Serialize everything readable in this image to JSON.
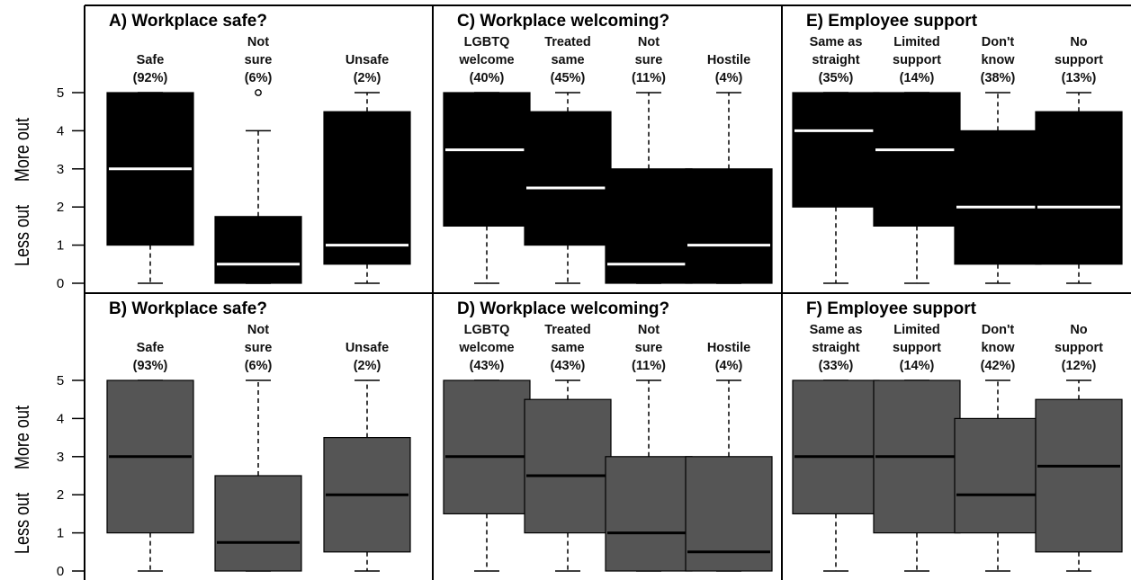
{
  "chart_data": [
    {
      "type": "boxplot",
      "title": "A) Workplace safe?",
      "ylabels": [
        "More out",
        "Less out"
      ],
      "yticks": [
        0,
        1,
        2,
        3,
        4,
        5
      ],
      "ylim": [
        0,
        5
      ],
      "box_color": "#000000",
      "median_color": "#ffffff",
      "boxes": [
        {
          "label": [
            "Safe",
            "(92%)"
          ],
          "min": 0,
          "q1": 1,
          "median": 3,
          "q3": 5,
          "max": 5,
          "outliers": []
        },
        {
          "label": [
            "Not",
            "sure",
            "(6%)"
          ],
          "min": 0,
          "q1": 0,
          "median": 0.5,
          "q3": 1.75,
          "max": 4,
          "outliers": [
            5
          ]
        },
        {
          "label": [
            "Unsafe",
            "(2%)"
          ],
          "min": 0,
          "q1": 0.5,
          "median": 1,
          "q3": 4.5,
          "max": 5,
          "outliers": []
        }
      ]
    },
    {
      "type": "boxplot",
      "title": "C) Workplace welcoming?",
      "yticks": [
        0,
        1,
        2,
        3,
        4,
        5
      ],
      "ylim": [
        0,
        5
      ],
      "box_color": "#000000",
      "median_color": "#ffffff",
      "boxes": [
        {
          "label": [
            "LGBTQ",
            "welcome",
            "(40%)"
          ],
          "min": 0,
          "q1": 1.5,
          "median": 3.5,
          "q3": 5,
          "max": 5,
          "outliers": []
        },
        {
          "label": [
            "Treated",
            "same",
            "(45%)"
          ],
          "min": 0,
          "q1": 1,
          "median": 2.5,
          "q3": 4.5,
          "max": 5,
          "outliers": []
        },
        {
          "label": [
            "Not",
            "sure",
            "(11%)"
          ],
          "min": 0,
          "q1": 0,
          "median": 0.5,
          "q3": 3,
          "max": 5,
          "outliers": []
        },
        {
          "label": [
            "Hostile",
            "(4%)"
          ],
          "min": 0,
          "q1": 0,
          "median": 1,
          "q3": 3,
          "max": 5,
          "outliers": []
        }
      ]
    },
    {
      "type": "boxplot",
      "title": "E) Employee support",
      "yticks": [
        0,
        1,
        2,
        3,
        4,
        5
      ],
      "ylim": [
        0,
        5
      ],
      "box_color": "#000000",
      "median_color": "#ffffff",
      "boxes": [
        {
          "label": [
            "Same as",
            "straight",
            "(35%)"
          ],
          "min": 0,
          "q1": 2,
          "median": 4,
          "q3": 5,
          "max": 5,
          "outliers": []
        },
        {
          "label": [
            "Limited",
            "support",
            "(14%)"
          ],
          "min": 0,
          "q1": 1.5,
          "median": 3.5,
          "q3": 5,
          "max": 5,
          "outliers": []
        },
        {
          "label": [
            "Don't",
            "know",
            "(38%)"
          ],
          "min": 0,
          "q1": 0.5,
          "median": 2,
          "q3": 4,
          "max": 5,
          "outliers": []
        },
        {
          "label": [
            "No",
            "support",
            "(13%)"
          ],
          "min": 0,
          "q1": 0.5,
          "median": 2,
          "q3": 4.5,
          "max": 5,
          "outliers": []
        }
      ]
    },
    {
      "type": "boxplot",
      "title": "B) Workplace safe?",
      "ylabels": [
        "More out",
        "Less out"
      ],
      "yticks": [
        0,
        1,
        2,
        3,
        4,
        5
      ],
      "ylim": [
        0,
        5
      ],
      "box_color": "#555555",
      "median_color": "#000000",
      "boxes": [
        {
          "label": [
            "Safe",
            "(93%)"
          ],
          "min": 0,
          "q1": 1,
          "median": 3,
          "q3": 5,
          "max": 5,
          "outliers": []
        },
        {
          "label": [
            "Not",
            "sure",
            "(6%)"
          ],
          "min": 0,
          "q1": 0,
          "median": 0.75,
          "q3": 2.5,
          "max": 5,
          "outliers": []
        },
        {
          "label": [
            "Unsafe",
            "(2%)"
          ],
          "min": 0,
          "q1": 0.5,
          "median": 2,
          "q3": 3.5,
          "max": 5,
          "outliers": []
        }
      ]
    },
    {
      "type": "boxplot",
      "title": "D) Workplace welcoming?",
      "yticks": [
        0,
        1,
        2,
        3,
        4,
        5
      ],
      "ylim": [
        0,
        5
      ],
      "box_color": "#555555",
      "median_color": "#000000",
      "boxes": [
        {
          "label": [
            "LGBTQ",
            "welcome",
            "(43%)"
          ],
          "min": 0,
          "q1": 1.5,
          "median": 3,
          "q3": 5,
          "max": 5,
          "outliers": []
        },
        {
          "label": [
            "Treated",
            "same",
            "(43%)"
          ],
          "min": 0,
          "q1": 1,
          "median": 2.5,
          "q3": 4.5,
          "max": 5,
          "outliers": []
        },
        {
          "label": [
            "Not",
            "sure",
            "(11%)"
          ],
          "min": 0,
          "q1": 0,
          "median": 1,
          "q3": 3,
          "max": 5,
          "outliers": []
        },
        {
          "label": [
            "Hostile",
            "(4%)"
          ],
          "min": 0,
          "q1": 0,
          "median": 0.5,
          "q3": 3,
          "max": 5,
          "outliers": []
        }
      ]
    },
    {
      "type": "boxplot",
      "title": "F) Employee support",
      "yticks": [
        0,
        1,
        2,
        3,
        4,
        5
      ],
      "ylim": [
        0,
        5
      ],
      "box_color": "#555555",
      "median_color": "#000000",
      "boxes": [
        {
          "label": [
            "Same as",
            "straight",
            "(33%)"
          ],
          "min": 0,
          "q1": 1.5,
          "median": 3,
          "q3": 5,
          "max": 5,
          "outliers": []
        },
        {
          "label": [
            "Limited",
            "support",
            "(14%)"
          ],
          "min": 0,
          "q1": 1,
          "median": 3,
          "q3": 5,
          "max": 5,
          "outliers": []
        },
        {
          "label": [
            "Don't",
            "know",
            "(42%)"
          ],
          "min": 0,
          "q1": 1,
          "median": 2,
          "q3": 4,
          "max": 5,
          "outliers": []
        },
        {
          "label": [
            "No",
            "support",
            "(12%)"
          ],
          "min": 0,
          "q1": 0.5,
          "median": 2.75,
          "q3": 4.5,
          "max": 5,
          "outliers": []
        }
      ]
    }
  ]
}
